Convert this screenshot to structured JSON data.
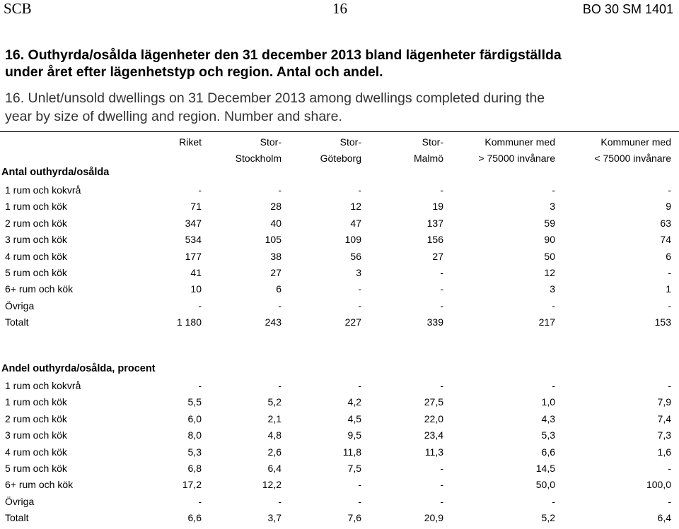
{
  "header": {
    "left": "SCB",
    "page": "16",
    "right": "BO 30 SM 1401"
  },
  "title_sv": [
    "16. Outhyrda/osålda lägenheter den 31 december 2013 bland lägenheter färdigställda",
    "under året efter lägenhetstyp och region. Antal och andel."
  ],
  "title_en": [
    "16. Unlet/unsold dwellings on 31 December 2013 among dwellings completed during the",
    "year by size of dwelling and region. Number and share."
  ],
  "columns": [
    [
      "Riket",
      ""
    ],
    [
      "Stor-",
      "Stockholm"
    ],
    [
      "Stor-",
      "Göteborg"
    ],
    [
      "Stor-",
      "Malmö"
    ],
    [
      "Kommuner med",
      "> 75000 invånare"
    ],
    [
      "Kommuner med",
      "< 75000 invånare"
    ]
  ],
  "section1": {
    "title": "Antal outhyrda/osålda",
    "rows": [
      {
        "label": "1 rum och kokvrå",
        "values": [
          "-",
          "-",
          "-",
          "-",
          "-",
          "-"
        ]
      },
      {
        "label": "1 rum och kök",
        "values": [
          "71",
          "28",
          "12",
          "19",
          "3",
          "9"
        ]
      },
      {
        "label": "2 rum och kök",
        "values": [
          "347",
          "40",
          "47",
          "137",
          "59",
          "63"
        ]
      },
      {
        "label": "3 rum och kök",
        "values": [
          "534",
          "105",
          "109",
          "156",
          "90",
          "74"
        ]
      },
      {
        "label": "4 rum och kök",
        "values": [
          "177",
          "38",
          "56",
          "27",
          "50",
          "6"
        ]
      },
      {
        "label": "5 rum och kök",
        "values": [
          "41",
          "27",
          "3",
          "-",
          "12",
          "-"
        ]
      },
      {
        "label": "6+ rum och kök",
        "values": [
          "10",
          "6",
          "-",
          "-",
          "3",
          "1"
        ]
      },
      {
        "label": "Övriga",
        "values": [
          "-",
          "-",
          "-",
          "-",
          "-",
          "-"
        ]
      },
      {
        "label": "Totalt",
        "values": [
          "1 180",
          "243",
          "227",
          "339",
          "217",
          "153"
        ]
      }
    ]
  },
  "section2": {
    "title": "Andel outhyrda/osålda, procent",
    "rows": [
      {
        "label": "1 rum och kokvrå",
        "values": [
          "-",
          "-",
          "-",
          "-",
          "-",
          "-"
        ]
      },
      {
        "label": "1 rum och kök",
        "values": [
          "5,5",
          "5,2",
          "4,2",
          "27,5",
          "1,0",
          "7,9"
        ]
      },
      {
        "label": "2 rum och kök",
        "values": [
          "6,0",
          "2,1",
          "4,5",
          "22,0",
          "4,3",
          "7,4"
        ]
      },
      {
        "label": "3 rum och kök",
        "values": [
          "8,0",
          "4,8",
          "9,5",
          "23,4",
          "5,3",
          "7,3"
        ]
      },
      {
        "label": "4 rum och kök",
        "values": [
          "5,3",
          "2,6",
          "11,8",
          "11,3",
          "6,6",
          "1,6"
        ]
      },
      {
        "label": "5 rum och kök",
        "values": [
          "6,8",
          "6,4",
          "7,5",
          "-",
          "14,5",
          "-"
        ]
      },
      {
        "label": "6+ rum och kök",
        "values": [
          "17,2",
          "12,2",
          "-",
          "-",
          "50,0",
          "100,0"
        ]
      },
      {
        "label": "Övriga",
        "values": [
          "-",
          "-",
          "-",
          "-",
          "-",
          "-"
        ]
      },
      {
        "label": "Totalt",
        "values": [
          "6,6",
          "3,7",
          "7,6",
          "20,9",
          "5,2",
          "6,4"
        ]
      }
    ]
  }
}
